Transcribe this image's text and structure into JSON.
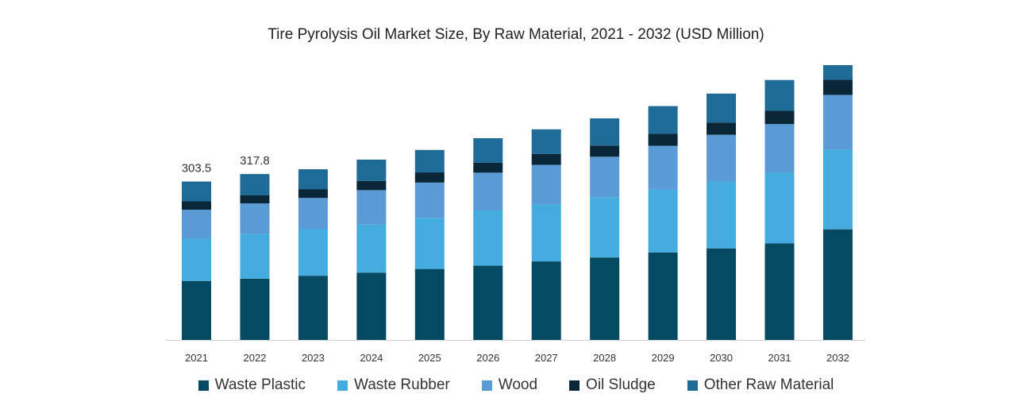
{
  "chart_data": {
    "type": "bar",
    "stacked": true,
    "title": "Tire Pyrolysis Oil Market Size, By Raw Material, 2021 - 2032 (USD Million)",
    "xlabel": "",
    "ylabel": "",
    "ylim": [
      0,
      560
    ],
    "grid": false,
    "legend_position": "bottom",
    "categories": [
      "2021",
      "2022",
      "2023",
      "2024",
      "2025",
      "2026",
      "2027",
      "2028",
      "2029",
      "2030",
      "2031",
      "2032"
    ],
    "series": [
      {
        "name": "Waste Plastic",
        "color": "#054a63",
        "values": [
          113.0,
          117.5,
          123.0,
          129.0,
          136.0,
          142.5,
          150.5,
          158.0,
          167.5,
          175.5,
          185.0,
          212.0
        ]
      },
      {
        "name": "Waste Rubber",
        "color": "#45ace0",
        "values": [
          81.0,
          86.0,
          90.0,
          92.0,
          98.0,
          105.5,
          109.5,
          115.5,
          121.0,
          128.0,
          135.5,
          153.0
        ]
      },
      {
        "name": "Wood",
        "color": "#5b9bd5",
        "values": [
          55.5,
          58.0,
          59.0,
          66.0,
          67.5,
          72.5,
          75.5,
          77.5,
          83.5,
          89.5,
          93.0,
          104.5
        ]
      },
      {
        "name": "Oil Sludge",
        "color": "#0a2639",
        "values": [
          16.0,
          16.0,
          17.0,
          17.5,
          19.5,
          19.0,
          21.0,
          21.5,
          23.0,
          23.5,
          25.5,
          29.0
        ]
      },
      {
        "name": "Other Raw Material",
        "color": "#1f6b98",
        "values": [
          38.0,
          40.3,
          38.0,
          41.0,
          43.0,
          47.0,
          47.0,
          52.0,
          53.0,
          55.5,
          59.0,
          28.0
        ]
      }
    ],
    "data_labels": [
      {
        "category": "2021",
        "text": "303.5"
      },
      {
        "category": "2022",
        "text": "317.8"
      }
    ]
  }
}
